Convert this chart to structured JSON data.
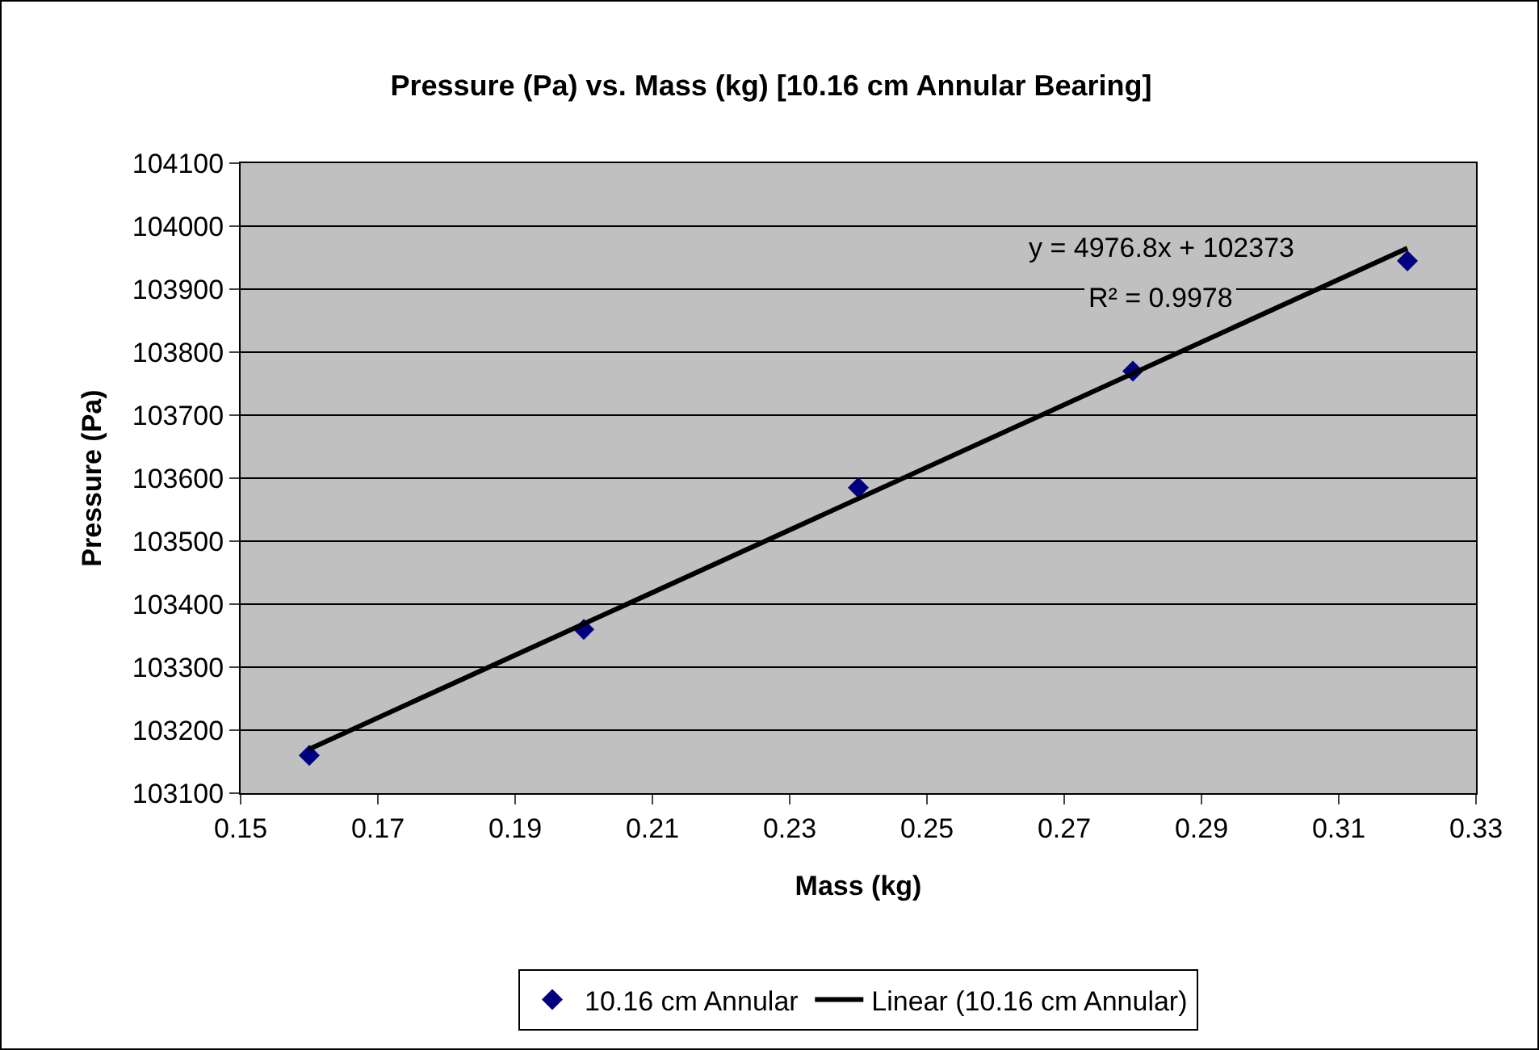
{
  "chart_data": {
    "type": "scatter",
    "title": "Pressure (Pa) vs. Mass (kg) [10.16 cm Annular Bearing]",
    "xlabel": "Mass (kg)",
    "ylabel": "Pressure (Pa)",
    "x": [
      0.16,
      0.2,
      0.24,
      0.28,
      0.32
    ],
    "series": [
      {
        "name": "10.16 cm Annular",
        "type": "scatter",
        "marker": "diamond",
        "color": "#000080",
        "values": [
          103160,
          103360,
          103585,
          103770,
          103945
        ]
      },
      {
        "name": "Linear (10.16 cm Annular)",
        "type": "line",
        "marker": "none",
        "color": "#000000",
        "x": [
          0.16,
          0.32
        ],
        "values": [
          103170,
          103965
        ]
      }
    ],
    "annotations": [
      "y = 4976.8x + 102373",
      "R² = 0.9978"
    ],
    "xlim": [
      0.15,
      0.33
    ],
    "xticks": [
      0.15,
      0.17,
      0.19,
      0.21,
      0.23,
      0.25,
      0.27,
      0.29,
      0.31,
      0.33
    ],
    "ylim": [
      103100,
      104100
    ],
    "yticks": [
      103100,
      103200,
      103300,
      103400,
      103500,
      103600,
      103700,
      103800,
      103900,
      104000,
      104100
    ],
    "grid": "y",
    "legend": "bottom",
    "line_style": "solid"
  }
}
